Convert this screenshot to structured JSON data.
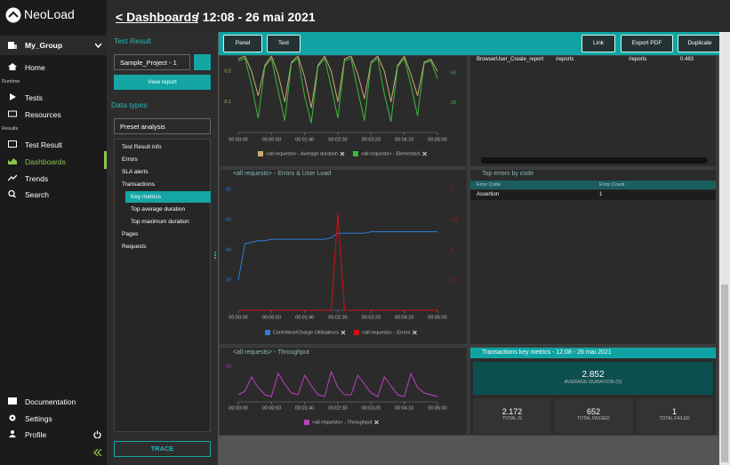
{
  "sidebar": {
    "brand": "NeoLoad",
    "group": "My_Group",
    "home": "Home",
    "runtime_label": "Runtime",
    "runtime_items": [
      "Tests",
      "Resources"
    ],
    "results_label": "Results",
    "results_items": [
      "Test Result",
      "Dashboards",
      "Trends",
      "Search"
    ],
    "bottom_items": [
      "Documentation",
      "Settings",
      "Profile"
    ]
  },
  "header": {
    "back": "< Dashboards",
    "title": "/ 12:08 - 26 mai 2021"
  },
  "filter_panel": {
    "test_result_label": "Test Result",
    "test_result_select": "Sample_Project - 1",
    "view_report": "View report",
    "data_types_label": "Data types",
    "preset_select": "Preset analysis",
    "tree": [
      {
        "label": "Test Result info"
      },
      {
        "label": "Errors"
      },
      {
        "label": "SLA alerts"
      },
      {
        "label": "Transactions",
        "children": [
          {
            "label": "Key metrics"
          },
          {
            "label": "Top average duration"
          },
          {
            "label": "Top maximum duration"
          }
        ]
      },
      {
        "label": "Pages"
      },
      {
        "label": "Requests"
      }
    ],
    "trace": "TRACE"
  },
  "toolbar": {
    "left": [
      "Panel",
      "Text"
    ],
    "right": [
      "Link",
      "Export PDF",
      "Duplicate"
    ]
  },
  "requests_table": {
    "rows": [
      [
        "BrowserUser_Create_report",
        "/reports",
        "/reports",
        0.483
      ]
    ]
  },
  "errors_table": {
    "title": "Top errors by code",
    "columns": [
      "Error Code",
      "Error Count"
    ],
    "rows": [
      [
        "Assertion",
        1
      ]
    ]
  },
  "key_metrics": {
    "title": "Transactions key metrics - 12:08 - 26 mai 2021",
    "main": {
      "value": 2.852,
      "label": "AVERAGE DURATION (S)"
    },
    "stats": [
      {
        "value": 2.172,
        "label": "TOTAL /S"
      },
      {
        "value": 652,
        "label": "TOTAL PASSED"
      },
      {
        "value": 1,
        "label": "TOTAL FAILED"
      }
    ]
  },
  "charts": [
    {
      "type": "line",
      "x": [
        0,
        10,
        20,
        30,
        40,
        50,
        60,
        70,
        80,
        90,
        100,
        110,
        120,
        130,
        140,
        150,
        160,
        170,
        180,
        190,
        200,
        210,
        220,
        230,
        240,
        250,
        260,
        270,
        280,
        290,
        300
      ],
      "xlim": [
        0,
        300
      ],
      "xticks": [
        {
          "value": 0,
          "label": "00:00:00"
        },
        {
          "value": 50,
          "label": "00:00:50"
        },
        {
          "value": 100,
          "label": "00:01:40"
        },
        {
          "value": 150,
          "label": "00:02:30"
        },
        {
          "value": 200,
          "label": "00:03:20"
        },
        {
          "value": 250,
          "label": "00:04:10"
        },
        {
          "value": 300,
          "label": "00:05:00"
        }
      ],
      "ylim": [
        0,
        0.25
      ],
      "yticks": [
        0.1,
        0.2
      ],
      "y2lim": [
        0,
        64
      ],
      "y2ticks": [
        25,
        50
      ],
      "series": [
        {
          "name": "<all requests> - Average duration",
          "color": "#c9a96e",
          "values": [
            0.24,
            0.25,
            0.2,
            0.12,
            0.22,
            0.25,
            0.19,
            0.1,
            0.23,
            0.25,
            0.18,
            0.08,
            0.22,
            0.25,
            0.2,
            0.1,
            0.24,
            0.25,
            0.19,
            0.11,
            0.23,
            0.25,
            0.2,
            0.1,
            0.22,
            0.25,
            0.19,
            0.12,
            0.23,
            0.24,
            0.2
          ]
        },
        {
          "name": "<all requests> - Elements/s",
          "color": "#3cba3c",
          "axis": "y2",
          "values": [
            60,
            62,
            40,
            12,
            55,
            62,
            35,
            10,
            58,
            62,
            30,
            8,
            55,
            62,
            38,
            12,
            60,
            62,
            35,
            10,
            58,
            62,
            32,
            9,
            55,
            62,
            40,
            14,
            58,
            60,
            45
          ]
        }
      ]
    },
    {
      "type": "line",
      "title": "<all requests> - Errors & User Load",
      "x": [
        0,
        10,
        20,
        30,
        40,
        50,
        60,
        70,
        80,
        90,
        100,
        110,
        120,
        130,
        140,
        150,
        160,
        170,
        180,
        190,
        200,
        210,
        220,
        230,
        240,
        250,
        260,
        270,
        280,
        290,
        300
      ],
      "xlim": [
        0,
        300
      ],
      "xticks": [
        {
          "value": 0,
          "label": "00:00:00"
        },
        {
          "value": 50,
          "label": "00:00:50"
        },
        {
          "value": 100,
          "label": "00:01:40"
        },
        {
          "value": 150,
          "label": "00:02:30"
        },
        {
          "value": 200,
          "label": "00:03:20"
        },
        {
          "value": 250,
          "label": "00:04:10"
        },
        {
          "value": 300,
          "label": "00:05:00"
        }
      ],
      "ylim": [
        0,
        90
      ],
      "yticks": [
        20,
        40,
        60,
        80
      ],
      "y2lim": [
        0,
        2.25
      ],
      "y2ticks": [
        0.5,
        1,
        1.5,
        2
      ],
      "series": [
        {
          "name": "Contrôleur/Charge Utilisateurs",
          "color": "#2f7ed8",
          "values": [
            20,
            44,
            45,
            46,
            46,
            47,
            47,
            47,
            47,
            47,
            47,
            47,
            47,
            47,
            48,
            51,
            51,
            51,
            51,
            51,
            52,
            52,
            52,
            52,
            52,
            52,
            52,
            52,
            52,
            52,
            52
          ]
        },
        {
          "name": "<all requests> - Errors",
          "color": "#d01010",
          "axis": "y2",
          "values": [
            0,
            0,
            0,
            0,
            0,
            0,
            0,
            0,
            0,
            0,
            0,
            0,
            0,
            0,
            0,
            1.6,
            0,
            0,
            0,
            0,
            0,
            0,
            0,
            0,
            0,
            0,
            0,
            0,
            0,
            0,
            0
          ]
        }
      ]
    },
    {
      "type": "line",
      "title": "<all requests> - Throughput",
      "x": [
        0,
        10,
        20,
        30,
        40,
        50,
        60,
        70,
        80,
        90,
        100,
        110,
        120,
        130,
        140,
        150,
        160,
        170,
        180,
        190,
        200,
        210,
        220,
        230,
        240,
        250,
        260,
        270,
        280,
        290,
        300
      ],
      "xlim": [
        0,
        300
      ],
      "xticks": [
        {
          "value": 0,
          "label": "00:00:00"
        },
        {
          "value": 50,
          "label": "00:00:50"
        },
        {
          "value": 100,
          "label": "00:01:40"
        },
        {
          "value": 150,
          "label": "00:02:30"
        },
        {
          "value": 200,
          "label": "00:03:20"
        },
        {
          "value": 250,
          "label": "00:04:10"
        },
        {
          "value": 300,
          "label": "00:05:00"
        }
      ],
      "ylim": [
        0,
        26
      ],
      "yticks": [
        20
      ],
      "series": [
        {
          "name": "<all requests> - Throughput",
          "color": "#c040c0",
          "values": [
            4,
            6,
            14,
            8,
            4,
            3,
            16,
            10,
            5,
            4,
            15,
            9,
            4,
            3,
            17,
            8,
            4,
            4,
            15,
            10,
            5,
            3,
            14,
            9,
            4,
            3,
            16,
            8,
            5,
            4,
            3
          ]
        }
      ]
    }
  ]
}
